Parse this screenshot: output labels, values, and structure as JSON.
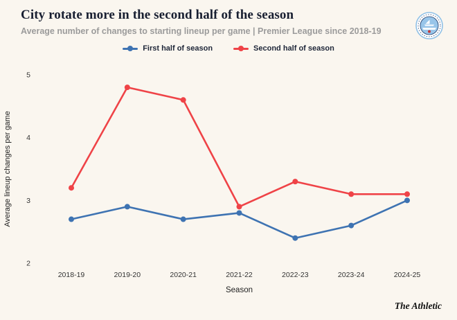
{
  "header": {
    "title": "City rotate more in the second half of the season",
    "subtitle": "Average number of changes to starting lineup per game | Premier League since 2018-19"
  },
  "badge": {
    "team": "Manchester City"
  },
  "legend": [
    {
      "label": "First half of season",
      "color": "#3e73b2"
    },
    {
      "label": "Second half of season",
      "color": "#ef4347"
    }
  ],
  "footer": {
    "brand": "The Athletic"
  },
  "chart_data": {
    "type": "line",
    "x": [
      "2018-19",
      "2019-20",
      "2020-21",
      "2021-22",
      "2022-23",
      "2023-24",
      "2024-25"
    ],
    "series": [
      {
        "name": "First half of season",
        "color": "#3e73b2",
        "values": [
          2.7,
          2.9,
          2.7,
          2.8,
          2.4,
          2.6,
          3.0
        ]
      },
      {
        "name": "Second half of season",
        "color": "#ef4347",
        "values": [
          3.2,
          4.8,
          4.6,
          2.9,
          3.3,
          3.1,
          3.1
        ]
      }
    ],
    "title": "City rotate more in the second half of the season",
    "xlabel": "Season",
    "ylabel": "Average lineup changes per game",
    "yticks": [
      2,
      3,
      4,
      5
    ],
    "ylim": [
      2,
      5
    ],
    "grid": false,
    "legend_position": "top"
  }
}
